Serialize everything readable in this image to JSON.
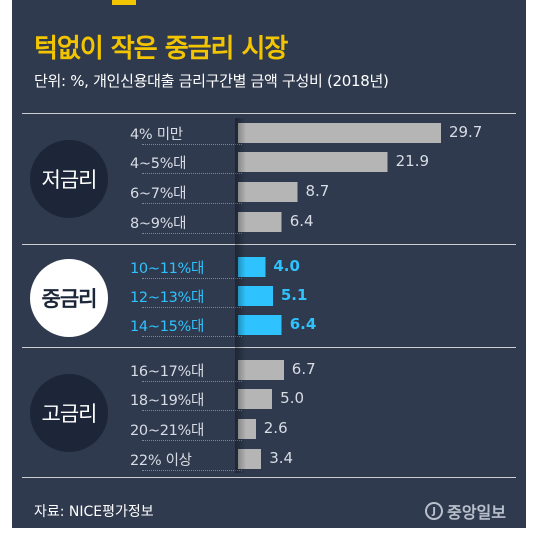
{
  "title": "턱없이 작은 중금리 시장",
  "subtitle": "단위: %, 개인신용대출 금리구간별 금액 구성비 (2018년)",
  "groups": [
    {
      "label": "저금리",
      "active": false
    },
    {
      "label": "중금리",
      "active": true
    },
    {
      "label": "고금리",
      "active": false
    }
  ],
  "source": "자료: NICE평가정보",
  "logo": "중앙일보",
  "colors": {
    "background": "#2f3a4e",
    "title": "#f2c500",
    "bar": "#b5b5b5",
    "highlight": "#2ec3ff"
  },
  "chart_data": {
    "type": "bar",
    "orientation": "horizontal",
    "categories": [
      "4% 미만",
      "4~5%대",
      "6~7%대",
      "8~9%대",
      "10~11%대",
      "12~13%대",
      "14~15%대",
      "16~17%대",
      "18~19%대",
      "20~21%대",
      "22% 이상"
    ],
    "values": [
      29.7,
      21.9,
      8.7,
      6.4,
      4.0,
      5.1,
      6.4,
      6.7,
      5.0,
      2.6,
      3.4
    ],
    "value_labels": [
      "29.7",
      "21.9",
      "8.7",
      "6.4",
      "4.0",
      "5.1",
      "6.4",
      "6.7",
      "5.0",
      "2.6",
      "3.4"
    ],
    "group_of_category": [
      0,
      0,
      0,
      0,
      1,
      1,
      1,
      2,
      2,
      2,
      2
    ],
    "highlighted": [
      false,
      false,
      false,
      false,
      true,
      true,
      true,
      false,
      false,
      false,
      false
    ],
    "xlim": [
      0,
      30
    ],
    "grid": false,
    "legend": "none"
  }
}
